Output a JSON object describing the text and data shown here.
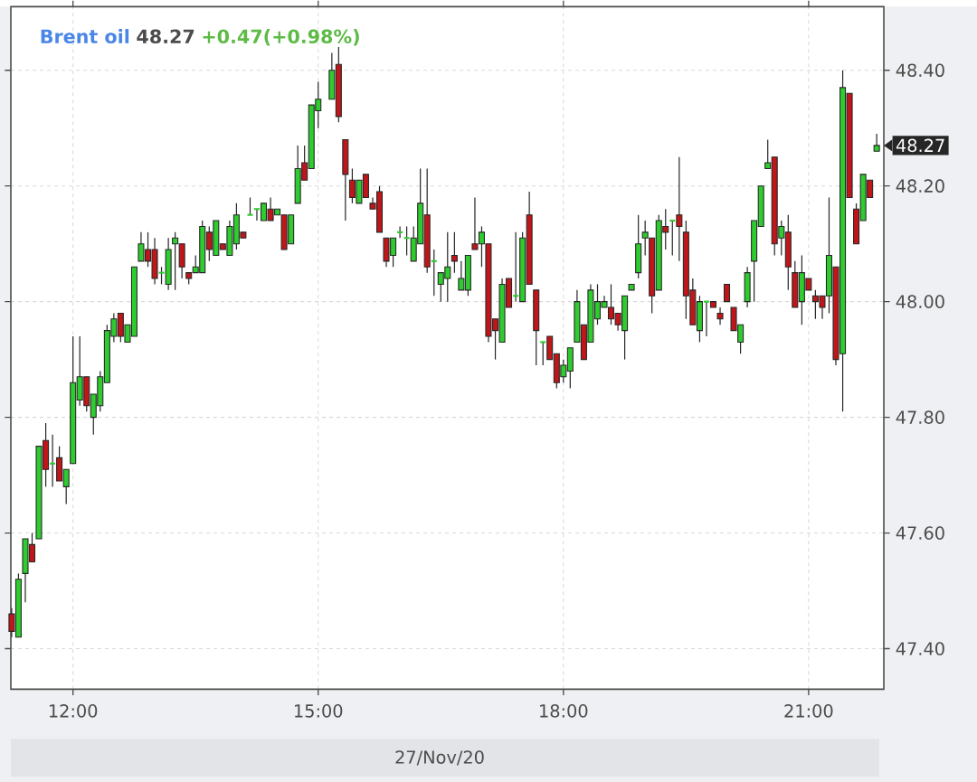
{
  "chart_data": {
    "type": "candlestick",
    "title": "Brent oil",
    "xlabel": "27/Nov/20",
    "annotations": [
      "48.27",
      "+0.47(+0.98%)",
      "48.27"
    ],
    "x": [
      11.25,
      11.333,
      11.417,
      11.5,
      11.583,
      11.667,
      11.75,
      11.833,
      11.917,
      12.0,
      12.083,
      12.167,
      12.25,
      12.333,
      12.417,
      12.5,
      12.583,
      12.667,
      12.75,
      12.833,
      12.917,
      13.0,
      13.083,
      13.167,
      13.25,
      13.333,
      13.417,
      13.5,
      13.583,
      13.667,
      13.75,
      13.833,
      13.917,
      14.0,
      14.083,
      14.167,
      14.25,
      14.333,
      14.417,
      14.5,
      14.583,
      14.667,
      14.75,
      14.833,
      14.917,
      15.0,
      15.167,
      15.25,
      15.333,
      15.417,
      15.5,
      15.583,
      15.667,
      15.75,
      15.833,
      15.917,
      16.0,
      16.083,
      16.167,
      16.25,
      16.333,
      16.417,
      16.5,
      16.583,
      16.667,
      16.75,
      16.833,
      16.917,
      17.0,
      17.083,
      17.167,
      17.25,
      17.333,
      17.417,
      17.5,
      17.583,
      17.667,
      17.75,
      17.833,
      17.917,
      18.0,
      18.083,
      18.167,
      18.25,
      18.333,
      18.417,
      18.5,
      18.583,
      18.667,
      18.75,
      18.833,
      18.917,
      19.0,
      19.083,
      19.167,
      19.25,
      19.333,
      19.417,
      19.5,
      19.583,
      19.667,
      19.75,
      19.833,
      19.917,
      20.0,
      20.083,
      20.167,
      20.25,
      20.333,
      20.417,
      20.5,
      20.583,
      20.667,
      20.75,
      20.833,
      20.917,
      21.0,
      21.083,
      21.167,
      21.25,
      21.333,
      21.417,
      21.5,
      21.583,
      21.667,
      21.75,
      21.833
    ],
    "ohlc": [
      [
        47.46,
        47.47,
        47.42,
        47.43
      ],
      [
        47.42,
        47.53,
        47.42,
        47.52
      ],
      [
        47.53,
        47.59,
        47.48,
        47.59
      ],
      [
        47.58,
        47.6,
        47.55,
        47.55
      ],
      [
        47.59,
        47.75,
        47.59,
        47.75
      ],
      [
        47.76,
        47.79,
        47.68,
        47.71
      ],
      [
        47.72,
        47.77,
        47.68,
        47.72
      ],
      [
        47.73,
        47.75,
        47.69,
        47.69
      ],
      [
        47.68,
        47.71,
        47.65,
        47.71
      ],
      [
        47.72,
        47.94,
        47.72,
        47.86
      ],
      [
        47.83,
        47.94,
        47.82,
        47.87
      ],
      [
        47.87,
        47.87,
        47.81,
        47.82
      ],
      [
        47.8,
        47.84,
        47.77,
        47.84
      ],
      [
        47.82,
        47.88,
        47.81,
        47.87
      ],
      [
        47.86,
        47.96,
        47.86,
        47.95
      ],
      [
        47.94,
        47.98,
        47.93,
        47.97
      ],
      [
        47.98,
        47.98,
        47.93,
        47.94
      ],
      [
        47.93,
        47.96,
        47.93,
        47.96
      ],
      [
        47.94,
        48.06,
        47.94,
        48.06
      ],
      [
        48.07,
        48.12,
        48.07,
        48.1
      ],
      [
        48.09,
        48.12,
        48.06,
        48.07
      ],
      [
        48.09,
        48.11,
        48.03,
        48.04
      ],
      [
        48.05,
        48.06,
        48.03,
        48.05
      ],
      [
        48.03,
        48.11,
        48.02,
        48.09
      ],
      [
        48.1,
        48.12,
        48.02,
        48.11
      ],
      [
        48.1,
        48.1,
        48.04,
        48.06
      ],
      [
        48.05,
        48.05,
        48.03,
        48.04
      ],
      [
        48.05,
        48.08,
        48.05,
        48.06
      ],
      [
        48.05,
        48.14,
        48.05,
        48.13
      ],
      [
        48.12,
        48.13,
        48.07,
        48.09
      ],
      [
        48.08,
        48.14,
        48.08,
        48.14
      ],
      [
        48.1,
        48.1,
        48.09,
        48.09
      ],
      [
        48.08,
        48.14,
        48.08,
        48.13
      ],
      [
        48.1,
        48.17,
        48.09,
        48.15
      ],
      [
        48.12,
        48.12,
        48.11,
        48.11
      ],
      [
        48.15,
        48.18,
        48.15,
        48.15
      ],
      [
        48.16,
        48.16,
        48.14,
        48.16
      ],
      [
        48.14,
        48.17,
        48.14,
        48.17
      ],
      [
        48.16,
        48.18,
        48.14,
        48.14
      ],
      [
        48.15,
        48.16,
        48.15,
        48.16
      ],
      [
        48.15,
        48.15,
        48.09,
        48.09
      ],
      [
        48.1,
        48.15,
        48.1,
        48.15
      ],
      [
        48.17,
        48.27,
        48.17,
        48.23
      ],
      [
        48.24,
        48.27,
        48.21,
        48.21
      ],
      [
        48.23,
        48.34,
        48.23,
        48.34
      ],
      [
        48.33,
        48.38,
        48.3,
        48.35
      ],
      [
        48.35,
        48.43,
        48.35,
        48.4
      ],
      [
        48.41,
        48.44,
        48.31,
        48.32
      ],
      [
        48.28,
        48.28,
        48.14,
        48.22
      ],
      [
        48.21,
        48.23,
        48.17,
        48.18
      ],
      [
        48.17,
        48.21,
        48.17,
        48.21
      ],
      [
        48.22,
        48.22,
        48.18,
        48.18
      ],
      [
        48.17,
        48.18,
        48.16,
        48.16
      ],
      [
        48.19,
        48.2,
        48.12,
        48.12
      ],
      [
        48.11,
        48.11,
        48.06,
        48.07
      ],
      [
        48.08,
        48.11,
        48.06,
        48.11
      ],
      [
        48.12,
        48.13,
        48.11,
        48.12
      ],
      [
        48.11,
        48.13,
        48.08,
        48.11
      ],
      [
        48.07,
        48.13,
        48.07,
        48.11
      ],
      [
        48.1,
        48.23,
        48.1,
        48.17
      ],
      [
        48.15,
        48.23,
        48.05,
        48.06
      ],
      [
        48.07,
        48.09,
        48.01,
        48.07
      ],
      [
        48.03,
        48.05,
        48.0,
        48.05
      ],
      [
        48.04,
        48.12,
        48.0,
        48.06
      ],
      [
        48.08,
        48.12,
        48.05,
        48.07
      ],
      [
        48.02,
        48.07,
        48.02,
        48.04
      ],
      [
        48.02,
        48.08,
        48.01,
        48.08
      ],
      [
        48.1,
        48.18,
        48.09,
        48.09
      ],
      [
        48.1,
        48.13,
        48.06,
        48.12
      ],
      [
        48.1,
        48.1,
        47.93,
        47.94
      ],
      [
        47.97,
        47.97,
        47.9,
        47.95
      ],
      [
        47.93,
        48.04,
        47.93,
        48.03
      ],
      [
        48.04,
        48.04,
        47.99,
        47.99
      ],
      [
        48.01,
        48.12,
        48.0,
        48.01
      ],
      [
        48.0,
        48.12,
        48.0,
        48.11
      ],
      [
        48.15,
        48.19,
        48.03,
        48.03
      ],
      [
        48.02,
        48.02,
        47.89,
        47.95
      ],
      [
        47.93,
        47.93,
        47.89,
        47.93
      ],
      [
        47.94,
        47.94,
        47.9,
        47.9
      ],
      [
        47.91,
        47.91,
        47.85,
        47.86
      ],
      [
        47.87,
        47.9,
        47.86,
        47.89
      ],
      [
        47.88,
        47.92,
        47.85,
        47.92
      ],
      [
        47.93,
        48.02,
        47.93,
        48.0
      ],
      [
        47.96,
        47.96,
        47.9,
        47.9
      ],
      [
        47.93,
        48.03,
        47.93,
        48.02
      ],
      [
        47.97,
        48.03,
        47.96,
        48.0
      ],
      [
        47.99,
        48.01,
        47.99,
        48.0
      ],
      [
        47.99,
        48.03,
        47.96,
        47.97
      ],
      [
        47.98,
        47.98,
        47.95,
        47.96
      ],
      [
        47.95,
        48.01,
        47.9,
        48.01
      ],
      [
        48.02,
        48.03,
        48.02,
        48.03
      ],
      [
        48.05,
        48.15,
        48.04,
        48.1
      ],
      [
        48.11,
        48.14,
        48.08,
        48.12
      ],
      [
        48.11,
        48.11,
        47.98,
        48.01
      ],
      [
        48.02,
        48.15,
        48.02,
        48.14
      ],
      [
        48.13,
        48.16,
        48.09,
        48.12
      ],
      [
        48.14,
        48.14,
        48.08,
        48.14
      ],
      [
        48.15,
        48.25,
        48.07,
        48.13
      ],
      [
        48.12,
        48.14,
        47.97,
        48.01
      ],
      [
        48.02,
        48.04,
        47.96,
        47.96
      ],
      [
        47.95,
        48.01,
        47.93,
        48.0
      ],
      [
        48.0,
        48.0,
        47.94,
        48.0
      ],
      [
        48.0,
        48.0,
        47.99,
        47.99
      ],
      [
        47.98,
        47.99,
        47.96,
        47.97
      ],
      [
        48.03,
        48.03,
        48.0,
        48.0
      ],
      [
        47.99,
        47.99,
        47.95,
        47.95
      ],
      [
        47.93,
        47.96,
        47.91,
        47.96
      ],
      [
        48.0,
        48.06,
        47.99,
        48.05
      ],
      [
        48.07,
        48.14,
        48.0,
        48.14
      ],
      [
        48.13,
        48.2,
        48.13,
        48.2
      ],
      [
        48.23,
        48.28,
        48.23,
        48.24
      ],
      [
        48.25,
        48.25,
        48.08,
        48.1
      ],
      [
        48.11,
        48.14,
        48.08,
        48.13
      ],
      [
        48.12,
        48.15,
        48.02,
        48.06
      ],
      [
        48.05,
        48.07,
        47.99,
        47.99
      ],
      [
        48.0,
        48.08,
        47.96,
        48.05
      ],
      [
        48.04,
        48.04,
        48.02,
        48.02
      ],
      [
        48.01,
        48.02,
        47.97,
        48.0
      ],
      [
        48.01,
        48.01,
        47.97,
        47.99
      ],
      [
        48.01,
        48.18,
        47.98,
        48.08
      ],
      [
        48.06,
        48.06,
        47.89,
        47.9
      ],
      [
        47.91,
        48.4,
        47.81,
        48.37
      ],
      [
        48.36,
        48.36,
        48.18,
        48.18
      ],
      [
        48.16,
        48.17,
        48.1,
        48.1
      ],
      [
        48.14,
        48.22,
        48.14,
        48.22
      ],
      [
        48.21,
        48.21,
        48.18,
        48.18
      ],
      [
        48.26,
        48.29,
        48.26,
        48.27
      ]
    ],
    "colors": [
      "#c0161a",
      "#2ecc2e",
      "#2ecc2e",
      "#c0161a",
      "#2ecc2e",
      "#c0161a",
      "#2ecc2e",
      "#c0161a",
      "#2ecc2e",
      "#2ecc2e",
      "#2ecc2e",
      "#c0161a",
      "#2ecc2e",
      "#2ecc2e",
      "#2ecc2e",
      "#2ecc2e",
      "#c0161a",
      "#2ecc2e",
      "#2ecc2e",
      "#2ecc2e",
      "#c0161a",
      "#c0161a",
      "#2ecc2e",
      "#2ecc2e",
      "#2ecc2e",
      "#c0161a",
      "#c0161a",
      "#2ecc2e",
      "#2ecc2e",
      "#c0161a",
      "#2ecc2e",
      "#c0161a",
      "#2ecc2e",
      "#2ecc2e",
      "#c0161a",
      "#2ecc2e",
      "#2ecc2e",
      "#2ecc2e",
      "#c0161a",
      "#2ecc2e",
      "#c0161a",
      "#2ecc2e",
      "#2ecc2e",
      "#c0161a",
      "#2ecc2e",
      "#2ecc2e",
      "#2ecc2e",
      "#c0161a",
      "#c0161a",
      "#c0161a",
      "#2ecc2e",
      "#c0161a",
      "#c0161a",
      "#c0161a",
      "#c0161a",
      "#2ecc2e",
      "#2ecc2e",
      "#2ecc2e",
      "#2ecc2e",
      "#2ecc2e",
      "#c0161a",
      "#2ecc2e",
      "#2ecc2e",
      "#2ecc2e",
      "#c0161a",
      "#2ecc2e",
      "#2ecc2e",
      "#c0161a",
      "#2ecc2e",
      "#c0161a",
      "#c0161a",
      "#2ecc2e",
      "#c0161a",
      "#2ecc2e",
      "#2ecc2e",
      "#c0161a",
      "#c0161a",
      "#2ecc2e",
      "#c0161a",
      "#c0161a",
      "#2ecc2e",
      "#2ecc2e",
      "#2ecc2e",
      "#c0161a",
      "#2ecc2e",
      "#2ecc2e",
      "#2ecc2e",
      "#c0161a",
      "#c0161a",
      "#2ecc2e",
      "#2ecc2e",
      "#2ecc2e",
      "#2ecc2e",
      "#c0161a",
      "#2ecc2e",
      "#c0161a",
      "#2ecc2e",
      "#c0161a",
      "#c0161a",
      "#c0161a",
      "#2ecc2e",
      "#2ecc2e",
      "#c0161a",
      "#c0161a",
      "#c0161a",
      "#c0161a",
      "#2ecc2e",
      "#2ecc2e",
      "#2ecc2e",
      "#2ecc2e",
      "#2ecc2e",
      "#c0161a",
      "#2ecc2e",
      "#c0161a",
      "#c0161a",
      "#2ecc2e",
      "#c0161a",
      "#c0161a",
      "#c0161a",
      "#2ecc2e",
      "#c0161a",
      "#2ecc2e",
      "#c0161a",
      "#c0161a",
      "#2ecc2e",
      "#c0161a",
      "#2ecc2e"
    ],
    "xlim": [
      11.24,
      21.92
    ],
    "ylim": [
      47.33,
      48.51
    ],
    "xticks": [
      {
        "value": 12,
        "label": "12:00"
      },
      {
        "value": 15,
        "label": "15:00"
      },
      {
        "value": 18,
        "label": "18:00"
      },
      {
        "value": 21,
        "label": "21:00"
      }
    ],
    "yticks": [
      {
        "value": 47.4,
        "label": "47.40"
      },
      {
        "value": 47.6,
        "label": "47.60"
      },
      {
        "value": 47.8,
        "label": "47.80"
      },
      {
        "value": 48.0,
        "label": "48.00"
      },
      {
        "value": 48.2,
        "label": "48.20"
      },
      {
        "value": 48.4,
        "label": "48.40"
      }
    ],
    "grid": true
  }
}
